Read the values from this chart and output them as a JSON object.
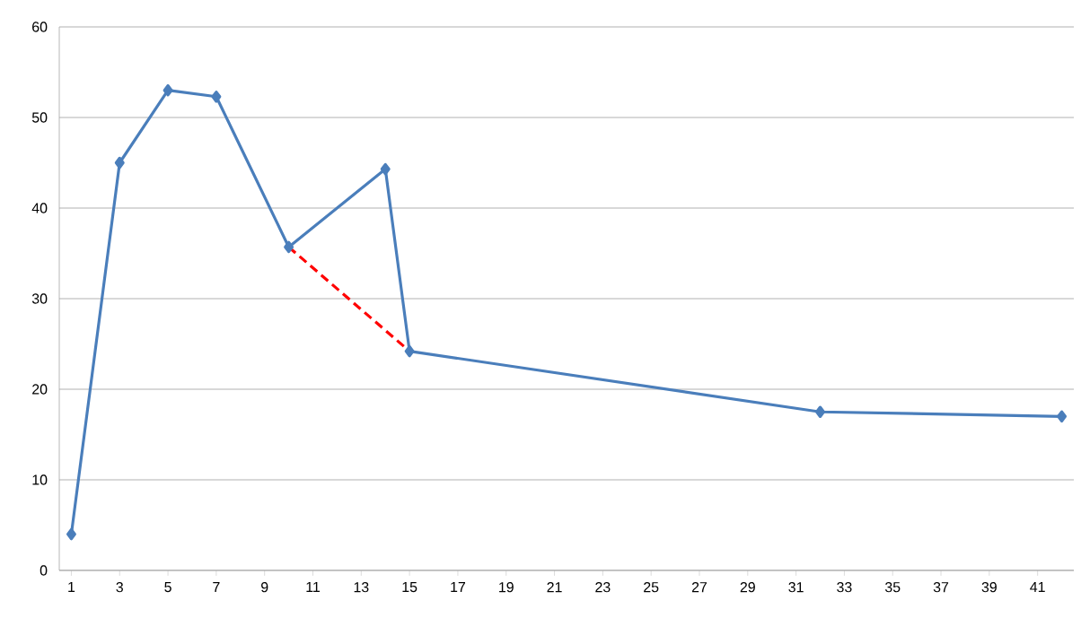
{
  "chart_data": {
    "type": "line",
    "xlim": [
      0.5,
      42.5
    ],
    "xticks": [
      1,
      3,
      5,
      7,
      9,
      11,
      13,
      15,
      17,
      19,
      21,
      23,
      25,
      27,
      29,
      31,
      33,
      35,
      37,
      39,
      41
    ],
    "ylim": [
      0,
      60
    ],
    "yticks": [
      0,
      10,
      20,
      30,
      40,
      50,
      60
    ],
    "grid": "y",
    "series": [
      {
        "color": "#4a7ebb",
        "x": [
          1,
          3,
          5,
          7,
          10,
          14,
          15,
          32,
          42
        ],
        "values": [
          4,
          45,
          53,
          52.3,
          35.7,
          44.3,
          24.2,
          17.5,
          17
        ],
        "marker": "diamond",
        "line_style": "solid"
      },
      {
        "color": "#ff0000",
        "x": [
          10,
          15
        ],
        "values": [
          35.7,
          24.2
        ],
        "marker": "none",
        "line_style": "dashed"
      }
    ]
  }
}
